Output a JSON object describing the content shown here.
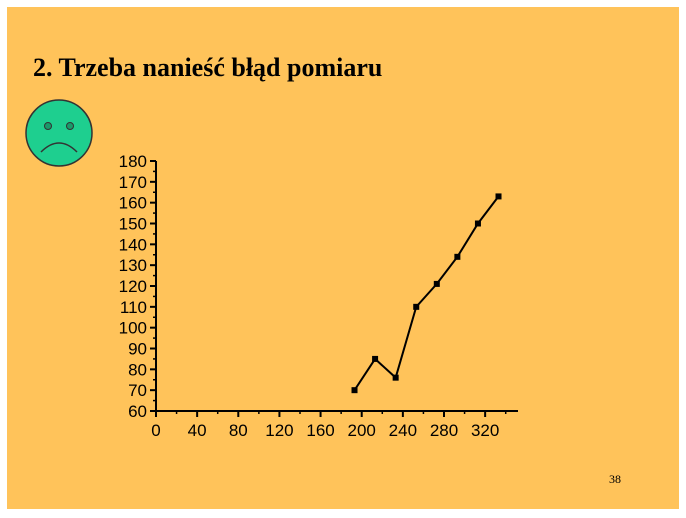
{
  "slide": {
    "title": "2. Trzeba nanieść błąd pomiaru",
    "page_number": "38",
    "background_color": "#ffc35a",
    "smiley": {
      "icon": "sad-face-icon",
      "color": "#1ecf8f"
    }
  },
  "chart_data": {
    "type": "line",
    "title": "",
    "xlabel": "",
    "ylabel": "",
    "xlim": [
      0,
      350
    ],
    "ylim": [
      60,
      180
    ],
    "x_ticks": [
      0,
      40,
      80,
      120,
      160,
      200,
      240,
      280,
      320
    ],
    "y_ticks": [
      60,
      70,
      80,
      90,
      100,
      110,
      120,
      130,
      140,
      150,
      160,
      170,
      180
    ],
    "grid": false,
    "marker": "square",
    "series": [
      {
        "x": [
          193,
          213,
          233,
          253,
          273,
          293,
          313,
          333
        ],
        "y": [
          70,
          85,
          76,
          110,
          121,
          134,
          150,
          163
        ]
      }
    ]
  }
}
